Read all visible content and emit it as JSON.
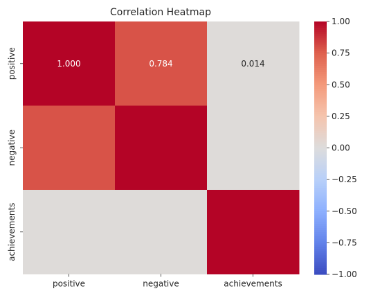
{
  "chart_data": {
    "type": "heatmap",
    "title": "Correlation Heatmap",
    "rows": [
      "positive",
      "negative",
      "achievements"
    ],
    "columns": [
      "positive",
      "negative",
      "achievements"
    ],
    "values": [
      [
        1.0,
        0.784,
        0.014
      ],
      [
        0.784,
        1.0,
        0.014
      ],
      [
        0.014,
        0.014,
        1.0
      ]
    ],
    "annotations": [
      [
        "1.000",
        "0.784",
        "0.014"
      ],
      [
        null,
        null,
        null
      ],
      [
        null,
        null,
        null
      ]
    ],
    "colormap": "coolwarm",
    "vmin": -1.0,
    "vmax": 1.0,
    "colorbar": {
      "ticks": [
        1.0,
        0.75,
        0.5,
        0.25,
        0.0,
        -0.25,
        -0.5,
        -0.75,
        -1.0
      ],
      "tick_labels": [
        "1.00",
        "0.75",
        "0.50",
        "0.25",
        "0.00",
        "−0.25",
        "−0.50",
        "−0.75",
        "−1.00"
      ]
    },
    "annotation_colors": {
      "light": "#ffffff",
      "dark": "#262626"
    }
  }
}
